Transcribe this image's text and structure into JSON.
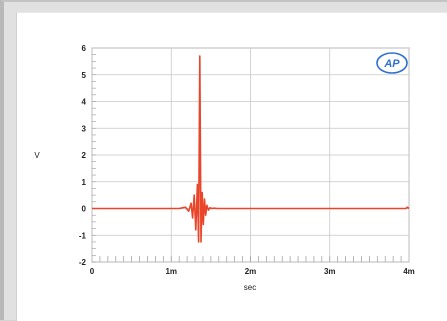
{
  "chart_data": {
    "type": "line",
    "title": "",
    "xlabel": "sec",
    "ylabel": "V",
    "xlim": [
      0,
      0.004
    ],
    "ylim": [
      -2,
      6
    ],
    "x_ticks": [
      {
        "value": 0,
        "label": "0"
      },
      {
        "value": 0.001,
        "label": "1m"
      },
      {
        "value": 0.002,
        "label": "2m"
      },
      {
        "value": 0.003,
        "label": "3m"
      },
      {
        "value": 0.004,
        "label": "4m"
      }
    ],
    "y_ticks": [
      {
        "value": 6,
        "label": "6"
      },
      {
        "value": 5,
        "label": "5"
      },
      {
        "value": 4,
        "label": "4"
      },
      {
        "value": 3,
        "label": "3"
      },
      {
        "value": 2,
        "label": "2"
      },
      {
        "value": 1,
        "label": "1"
      },
      {
        "value": 0,
        "label": "0"
      },
      {
        "value": -1,
        "label": "-1"
      },
      {
        "value": -2,
        "label": "-2"
      }
    ],
    "grid": true,
    "legend": "none",
    "series": [
      {
        "color": "#e8452a",
        "x": [
          0,
          0.0011,
          0.00118,
          0.00122,
          0.00125,
          0.00127,
          0.00129,
          0.00131,
          0.00133,
          0.001345,
          0.00136,
          0.001375,
          0.00139,
          0.001405,
          0.00142,
          0.001435,
          0.00145,
          0.00147,
          0.00149,
          0.00151,
          0.00154,
          0.00158,
          0.0017,
          0.002,
          0.003,
          0.00396,
          0.00398,
          0.004
        ],
        "y": [
          0,
          0,
          0.05,
          -0.1,
          0.2,
          -0.35,
          0.5,
          -0.8,
          0.9,
          -1.25,
          5.7,
          -1.25,
          0.6,
          -0.6,
          0.35,
          -0.25,
          0.12,
          -0.06,
          0.03,
          0,
          0.01,
          0,
          0,
          0,
          0,
          0,
          0.05,
          0
        ]
      }
    ]
  },
  "logo": {
    "text": "AP",
    "color": "#2e6fcf"
  }
}
